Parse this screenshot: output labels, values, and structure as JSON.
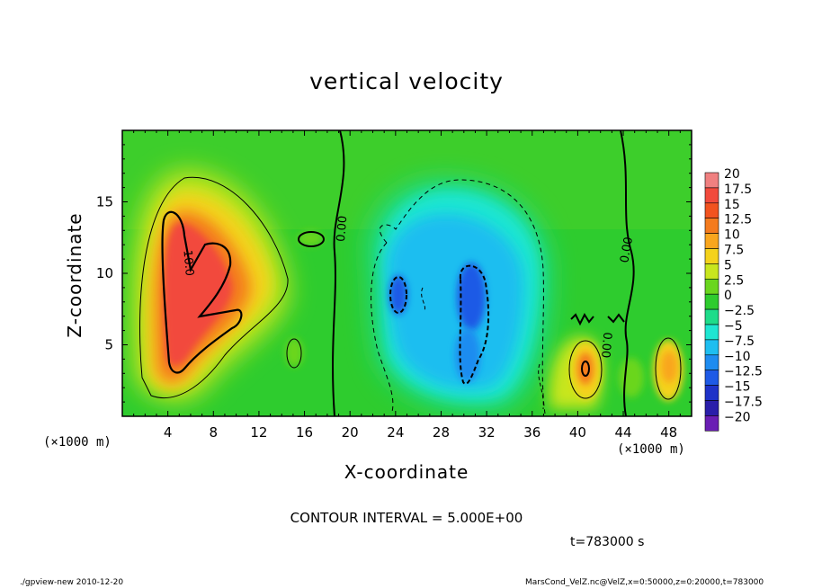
{
  "chart_data": {
    "type": "heatmap",
    "title": "vertical velocity",
    "xlabel": "X-coordinate",
    "ylabel": "Z-coordinate",
    "x_unit_note": "(×1000 m)",
    "y_unit_note": "(×1000 m)",
    "xlim": [
      0,
      50
    ],
    "ylim": [
      0,
      20
    ],
    "x_ticks": [
      4,
      8,
      12,
      16,
      20,
      24,
      28,
      32,
      36,
      40,
      44,
      48
    ],
    "y_ticks": [
      5,
      10,
      15
    ],
    "colorbar": {
      "levels": [
        20,
        17.5,
        15,
        12.5,
        10,
        7.5,
        5,
        2.5,
        0,
        -2.5,
        -5,
        -7.5,
        -10,
        -12.5,
        -15,
        -17.5,
        -20
      ],
      "labels": [
        "20",
        "17.5",
        "15",
        "12.5",
        "10",
        "7.5",
        "5",
        "2.5",
        "0",
        "−2.5",
        "−5",
        "−7.5",
        "−10",
        "−12.5",
        "−15",
        "−17.5",
        "−20"
      ],
      "colors": [
        "#f08080",
        "#f24a3c",
        "#f2531f",
        "#f47b1e",
        "#f9a61e",
        "#f4d21c",
        "#c8e61e",
        "#6ad61e",
        "#2ecc2e",
        "#1edc8a",
        "#1ee6d2",
        "#1ebef0",
        "#1e8cf0",
        "#1e5ae6",
        "#1e32c8",
        "#2a1eaa",
        "#6a1eb4"
      ]
    },
    "contour_labels": [
      {
        "text": "10.0",
        "x": 5.5,
        "z": 10.7,
        "rotate": 85
      },
      {
        "text": "0.00",
        "x": 19.6,
        "z": 13.1,
        "rotate": -85
      },
      {
        "text": "0.00",
        "x": 44.6,
        "z": 11.6,
        "rotate": -80
      },
      {
        "text": "0.00",
        "x": 42.2,
        "z": 5.0,
        "rotate": 95
      }
    ],
    "contour_interval": "CONTOUR INTERVAL = 5.000E+00",
    "time": "t=783000 s",
    "features": [
      {
        "kind": "updraft",
        "x": 7,
        "z": 8.5,
        "peak": 15
      },
      {
        "kind": "downdraft",
        "x": 30,
        "z": 8,
        "peak": -12.5
      },
      {
        "kind": "downdraft",
        "x": 24,
        "z": 9,
        "peak": -12.5
      },
      {
        "kind": "updraft",
        "x": 40.5,
        "z": 3.5,
        "peak": 10
      },
      {
        "kind": "updraft",
        "x": 48,
        "z": 4,
        "peak": 7.5
      }
    ]
  },
  "footer": {
    "left": "./gpview-new  2010-12-20",
    "right": "MarsCond_VelZ.nc@VelZ,x=0:50000,z=0:20000,t=783000"
  }
}
